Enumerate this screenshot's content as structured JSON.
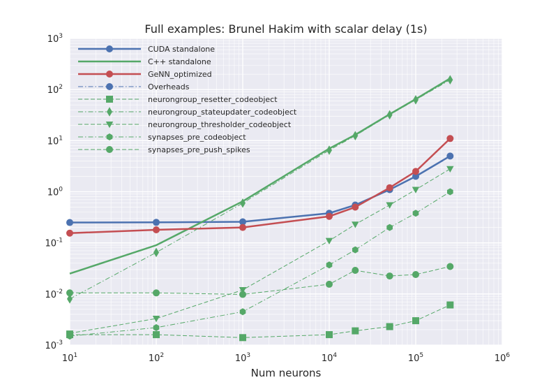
{
  "chart_data": {
    "type": "line",
    "title": "Full examples: Brunel Hakim with scalar delay (1s)",
    "xlabel": "Num neurons",
    "ylabel": "",
    "xscale": "log",
    "yscale": "log",
    "xlim": [
      10,
      1000000
    ],
    "ylim": [
      0.001,
      1000
    ],
    "x_ticks": [
      {
        "value": 10,
        "base": "10",
        "exp": "1"
      },
      {
        "value": 100,
        "base": "10",
        "exp": "2"
      },
      {
        "value": 1000,
        "base": "10",
        "exp": "3"
      },
      {
        "value": 10000,
        "base": "10",
        "exp": "4"
      },
      {
        "value": 100000,
        "base": "10",
        "exp": "5"
      },
      {
        "value": 1000000,
        "base": "10",
        "exp": "6"
      }
    ],
    "y_ticks": [
      {
        "value": 0.001,
        "base": "10",
        "exp": "-3"
      },
      {
        "value": 0.01,
        "base": "10",
        "exp": "-2"
      },
      {
        "value": 0.1,
        "base": "10",
        "exp": "-1"
      },
      {
        "value": 1,
        "base": "10",
        "exp": "0"
      },
      {
        "value": 10,
        "base": "10",
        "exp": "1"
      },
      {
        "value": 100,
        "base": "10",
        "exp": "2"
      },
      {
        "value": 1000,
        "base": "10",
        "exp": "3"
      }
    ],
    "grid": true,
    "legend_position": "top-left",
    "series": [
      {
        "name": "CUDA standalone",
        "color": "#4c72b0",
        "style": "solid",
        "marker": "circle",
        "x": [
          10,
          100,
          1000,
          10000,
          20000,
          50000,
          100000,
          250000
        ],
        "y": [
          0.25,
          0.252,
          0.258,
          0.38,
          0.55,
          1.1,
          2.0,
          5.0
        ]
      },
      {
        "name": "C++ standalone",
        "color": "#55a868",
        "style": "solid",
        "marker": "none",
        "x": [
          10,
          100,
          1000,
          10000,
          20000,
          50000,
          100000,
          250000
        ],
        "y": [
          0.025,
          0.09,
          0.65,
          7.0,
          13.0,
          33.0,
          65.0,
          165.0
        ]
      },
      {
        "name": "GeNN_optimized",
        "color": "#c44e52",
        "style": "solid",
        "marker": "circle",
        "x": [
          10,
          100,
          1000,
          10000,
          20000,
          50000,
          100000,
          250000
        ],
        "y": [
          0.155,
          0.18,
          0.2,
          0.33,
          0.5,
          1.2,
          2.5,
          11.0
        ]
      },
      {
        "name": "Overheads",
        "color": "#4c72b0",
        "style": "dashdot",
        "marker": "circle",
        "legend_only": true,
        "x": [],
        "y": []
      },
      {
        "name": "neurongroup_resetter_codeobject",
        "color": "#55a868",
        "style": "dashed",
        "marker": "square",
        "x": [
          10,
          100,
          1000,
          10000,
          20000,
          50000,
          100000,
          250000
        ],
        "y": [
          0.0016,
          0.0016,
          0.0014,
          0.0016,
          0.0019,
          0.0023,
          0.003,
          0.0061
        ]
      },
      {
        "name": "neurongroup_stateupdater_codeobject",
        "color": "#55a868",
        "style": "dashdot",
        "marker": "diamond",
        "x": [
          10,
          100,
          1000,
          10000,
          20000,
          50000,
          100000,
          250000
        ],
        "y": [
          0.008,
          0.065,
          0.6,
          6.5,
          12.5,
          32.0,
          63.0,
          155.0
        ]
      },
      {
        "name": "neurongroup_thresholder_codeobject",
        "color": "#55a868",
        "style": "dashed",
        "marker": "triangle-down",
        "x": [
          10,
          100,
          1000,
          10000,
          20000,
          50000,
          100000,
          250000
        ],
        "y": [
          0.0017,
          0.0033,
          0.012,
          0.11,
          0.23,
          0.55,
          1.1,
          2.8
        ]
      },
      {
        "name": "synapses_pre_codeobject",
        "color": "#55a868",
        "style": "dashdot",
        "marker": "hexagon",
        "x": [
          10,
          100,
          1000,
          10000,
          20000,
          50000,
          100000,
          250000
        ],
        "y": [
          0.0015,
          0.0022,
          0.0045,
          0.037,
          0.073,
          0.2,
          0.38,
          1.0
        ]
      },
      {
        "name": "synapses_pre_push_spikes",
        "color": "#55a868",
        "style": "dashed",
        "marker": "circle",
        "x": [
          10,
          100,
          1000,
          10000,
          20000,
          50000,
          100000,
          250000
        ],
        "y": [
          0.0105,
          0.0105,
          0.0098,
          0.0155,
          0.029,
          0.0225,
          0.024,
          0.0345
        ]
      }
    ]
  }
}
